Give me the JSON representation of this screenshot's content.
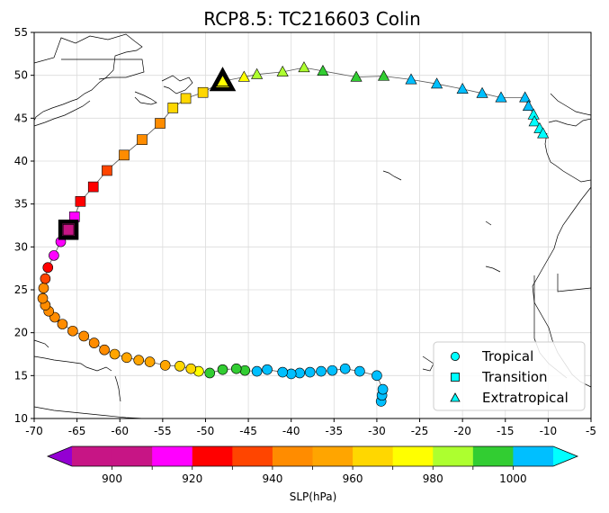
{
  "chart_data": {
    "type": "scatter",
    "title": "RCP8.5: TC216603 Colin",
    "xlim": [
      -70,
      -5
    ],
    "ylim": [
      10,
      55
    ],
    "xticks": [
      -70,
      -65,
      -60,
      -55,
      -50,
      -45,
      -40,
      -35,
      -30,
      -25,
      -20,
      -15,
      -10,
      -5
    ],
    "yticks": [
      10,
      15,
      20,
      25,
      30,
      35,
      40,
      45,
      50,
      55
    ],
    "grid": true,
    "legend": {
      "placement": "lower-right",
      "entries": [
        {
          "label": "Tropical",
          "marker": "circle"
        },
        {
          "label": "Transition",
          "marker": "square"
        },
        {
          "label": "Extratropical",
          "marker": "triangle"
        }
      ]
    },
    "colorbar": {
      "label": "SLP(hPa)",
      "ticks": [
        900,
        920,
        940,
        960,
        980,
        1000
      ],
      "bins": [
        {
          "min": 890,
          "max": 900,
          "color": "#c71585"
        },
        {
          "min": 900,
          "max": 910,
          "color": "#c71585"
        },
        {
          "min": 910,
          "max": 920,
          "color": "#ff00ff"
        },
        {
          "min": 920,
          "max": 930,
          "color": "#ff0000"
        },
        {
          "min": 930,
          "max": 940,
          "color": "#ff4500"
        },
        {
          "min": 940,
          "max": 950,
          "color": "#ff8c00"
        },
        {
          "min": 950,
          "max": 960,
          "color": "#ffa500"
        },
        {
          "min": 960,
          "max": 970,
          "color": "#ffd700"
        },
        {
          "min": 970,
          "max": 980,
          "color": "#ffff00"
        },
        {
          "min": 980,
          "max": 990,
          "color": "#adff2f"
        },
        {
          "min": 990,
          "max": 1000,
          "color": "#32cd32"
        },
        {
          "min": 1000,
          "max": 1010,
          "color": "#00bfff"
        }
      ],
      "under_color": "#9400d3",
      "over_color": "#00ffff"
    },
    "highlight_points": [
      {
        "x": -66.0,
        "y": 32.0,
        "marker": "square"
      },
      {
        "x": -48.0,
        "y": 49.3,
        "marker": "triangle"
      }
    ],
    "track": [
      {
        "x": -29.5,
        "y": 12.0,
        "phase": "tropical",
        "color": "#00bfff"
      },
      {
        "x": -29.4,
        "y": 12.7,
        "phase": "tropical",
        "color": "#00bfff"
      },
      {
        "x": -29.3,
        "y": 13.4,
        "phase": "tropical",
        "color": "#00bfff"
      },
      {
        "x": -30.0,
        "y": 15.0,
        "phase": "tropical",
        "color": "#00bfff"
      },
      {
        "x": -32.0,
        "y": 15.5,
        "phase": "tropical",
        "color": "#00bfff"
      },
      {
        "x": -33.7,
        "y": 15.8,
        "phase": "tropical",
        "color": "#00bfff"
      },
      {
        "x": -35.2,
        "y": 15.6,
        "phase": "tropical",
        "color": "#00bfff"
      },
      {
        "x": -36.5,
        "y": 15.5,
        "phase": "tropical",
        "color": "#00bfff"
      },
      {
        "x": -37.8,
        "y": 15.4,
        "phase": "tropical",
        "color": "#00bfff"
      },
      {
        "x": -39.0,
        "y": 15.3,
        "phase": "tropical",
        "color": "#00bfff"
      },
      {
        "x": -40.0,
        "y": 15.2,
        "phase": "tropical",
        "color": "#00bfff"
      },
      {
        "x": -41.0,
        "y": 15.4,
        "phase": "tropical",
        "color": "#00bfff"
      },
      {
        "x": -42.8,
        "y": 15.7,
        "phase": "tropical",
        "color": "#00bfff"
      },
      {
        "x": -44.0,
        "y": 15.5,
        "phase": "tropical",
        "color": "#00bfff"
      },
      {
        "x": -45.4,
        "y": 15.6,
        "phase": "tropical",
        "color": "#32cd32"
      },
      {
        "x": -46.4,
        "y": 15.8,
        "phase": "tropical",
        "color": "#32cd32"
      },
      {
        "x": -48.0,
        "y": 15.7,
        "phase": "tropical",
        "color": "#32cd32"
      },
      {
        "x": -49.5,
        "y": 15.3,
        "phase": "tropical",
        "color": "#32cd32"
      },
      {
        "x": -50.8,
        "y": 15.5,
        "phase": "tropical",
        "color": "#ffff00"
      },
      {
        "x": -51.7,
        "y": 15.8,
        "phase": "tropical",
        "color": "#ffd700"
      },
      {
        "x": -53.0,
        "y": 16.1,
        "phase": "tropical",
        "color": "#ffd700"
      },
      {
        "x": -54.7,
        "y": 16.2,
        "phase": "tropical",
        "color": "#ffa500"
      },
      {
        "x": -56.5,
        "y": 16.6,
        "phase": "tropical",
        "color": "#ffa500"
      },
      {
        "x": -57.8,
        "y": 16.8,
        "phase": "tropical",
        "color": "#ffa500"
      },
      {
        "x": -59.2,
        "y": 17.1,
        "phase": "tropical",
        "color": "#ffa500"
      },
      {
        "x": -60.6,
        "y": 17.5,
        "phase": "tropical",
        "color": "#ffa500"
      },
      {
        "x": -61.8,
        "y": 18.0,
        "phase": "tropical",
        "color": "#ff8c00"
      },
      {
        "x": -63.0,
        "y": 18.8,
        "phase": "tropical",
        "color": "#ff8c00"
      },
      {
        "x": -64.2,
        "y": 19.6,
        "phase": "tropical",
        "color": "#ff8c00"
      },
      {
        "x": -65.5,
        "y": 20.2,
        "phase": "tropical",
        "color": "#ff8c00"
      },
      {
        "x": -66.7,
        "y": 21.0,
        "phase": "tropical",
        "color": "#ff8c00"
      },
      {
        "x": -67.6,
        "y": 21.8,
        "phase": "tropical",
        "color": "#ff8c00"
      },
      {
        "x": -68.3,
        "y": 22.5,
        "phase": "tropical",
        "color": "#ff8c00"
      },
      {
        "x": -68.7,
        "y": 23.2,
        "phase": "tropical",
        "color": "#ff8c00"
      },
      {
        "x": -69.0,
        "y": 24.0,
        "phase": "tropical",
        "color": "#ff8c00"
      },
      {
        "x": -68.9,
        "y": 25.2,
        "phase": "tropical",
        "color": "#ff8c00"
      },
      {
        "x": -68.7,
        "y": 26.3,
        "phase": "tropical",
        "color": "#ff4500"
      },
      {
        "x": -68.4,
        "y": 27.6,
        "phase": "tropical",
        "color": "#ff0000"
      },
      {
        "x": -67.7,
        "y": 29.0,
        "phase": "tropical",
        "color": "#ff00ff"
      },
      {
        "x": -66.9,
        "y": 30.6,
        "phase": "tropical",
        "color": "#ff00ff"
      },
      {
        "x": -66.0,
        "y": 32.0,
        "phase": "transition",
        "color": "#c71585"
      },
      {
        "x": -65.3,
        "y": 33.5,
        "phase": "transition",
        "color": "#ff00ff"
      },
      {
        "x": -64.6,
        "y": 35.3,
        "phase": "transition",
        "color": "#ff0000"
      },
      {
        "x": -63.1,
        "y": 37.0,
        "phase": "transition",
        "color": "#ff0000"
      },
      {
        "x": -61.5,
        "y": 38.9,
        "phase": "transition",
        "color": "#ff4500"
      },
      {
        "x": -59.5,
        "y": 40.7,
        "phase": "transition",
        "color": "#ff8c00"
      },
      {
        "x": -57.4,
        "y": 42.5,
        "phase": "transition",
        "color": "#ff8c00"
      },
      {
        "x": -55.3,
        "y": 44.4,
        "phase": "transition",
        "color": "#ff8c00"
      },
      {
        "x": -53.8,
        "y": 46.2,
        "phase": "transition",
        "color": "#ffd700"
      },
      {
        "x": -52.3,
        "y": 47.3,
        "phase": "transition",
        "color": "#ffd700"
      },
      {
        "x": -50.3,
        "y": 48.0,
        "phase": "transition",
        "color": "#ffd700"
      },
      {
        "x": -48.0,
        "y": 49.3,
        "phase": "extratropical",
        "color": "#ffff00"
      },
      {
        "x": -45.5,
        "y": 49.8,
        "phase": "extratropical",
        "color": "#ffff00"
      },
      {
        "x": -44.0,
        "y": 50.1,
        "phase": "extratropical",
        "color": "#adff2f"
      },
      {
        "x": -41.0,
        "y": 50.4,
        "phase": "extratropical",
        "color": "#adff2f"
      },
      {
        "x": -38.5,
        "y": 50.9,
        "phase": "extratropical",
        "color": "#adff2f"
      },
      {
        "x": -36.3,
        "y": 50.5,
        "phase": "extratropical",
        "color": "#32cd32"
      },
      {
        "x": -32.4,
        "y": 49.8,
        "phase": "extratropical",
        "color": "#32cd32"
      },
      {
        "x": -29.2,
        "y": 49.9,
        "phase": "extratropical",
        "color": "#32cd32"
      },
      {
        "x": -26.0,
        "y": 49.5,
        "phase": "extratropical",
        "color": "#00bfff"
      },
      {
        "x": -23.0,
        "y": 49.0,
        "phase": "extratropical",
        "color": "#00bfff"
      },
      {
        "x": -20.0,
        "y": 48.4,
        "phase": "extratropical",
        "color": "#00bfff"
      },
      {
        "x": -17.7,
        "y": 47.9,
        "phase": "extratropical",
        "color": "#00bfff"
      },
      {
        "x": -15.5,
        "y": 47.4,
        "phase": "extratropical",
        "color": "#00bfff"
      },
      {
        "x": -12.7,
        "y": 47.4,
        "phase": "extratropical",
        "color": "#00bfff"
      },
      {
        "x": -12.3,
        "y": 46.4,
        "phase": "extratropical",
        "color": "#00bfff"
      },
      {
        "x": -11.7,
        "y": 45.4,
        "phase": "extratropical",
        "color": "#00ffff"
      },
      {
        "x": -11.6,
        "y": 44.6,
        "phase": "extratropical",
        "color": "#00ffff"
      },
      {
        "x": -11.0,
        "y": 43.8,
        "phase": "extratropical",
        "color": "#00ffff"
      },
      {
        "x": -10.6,
        "y": 43.2,
        "phase": "extratropical",
        "color": "#00ffff"
      }
    ]
  }
}
